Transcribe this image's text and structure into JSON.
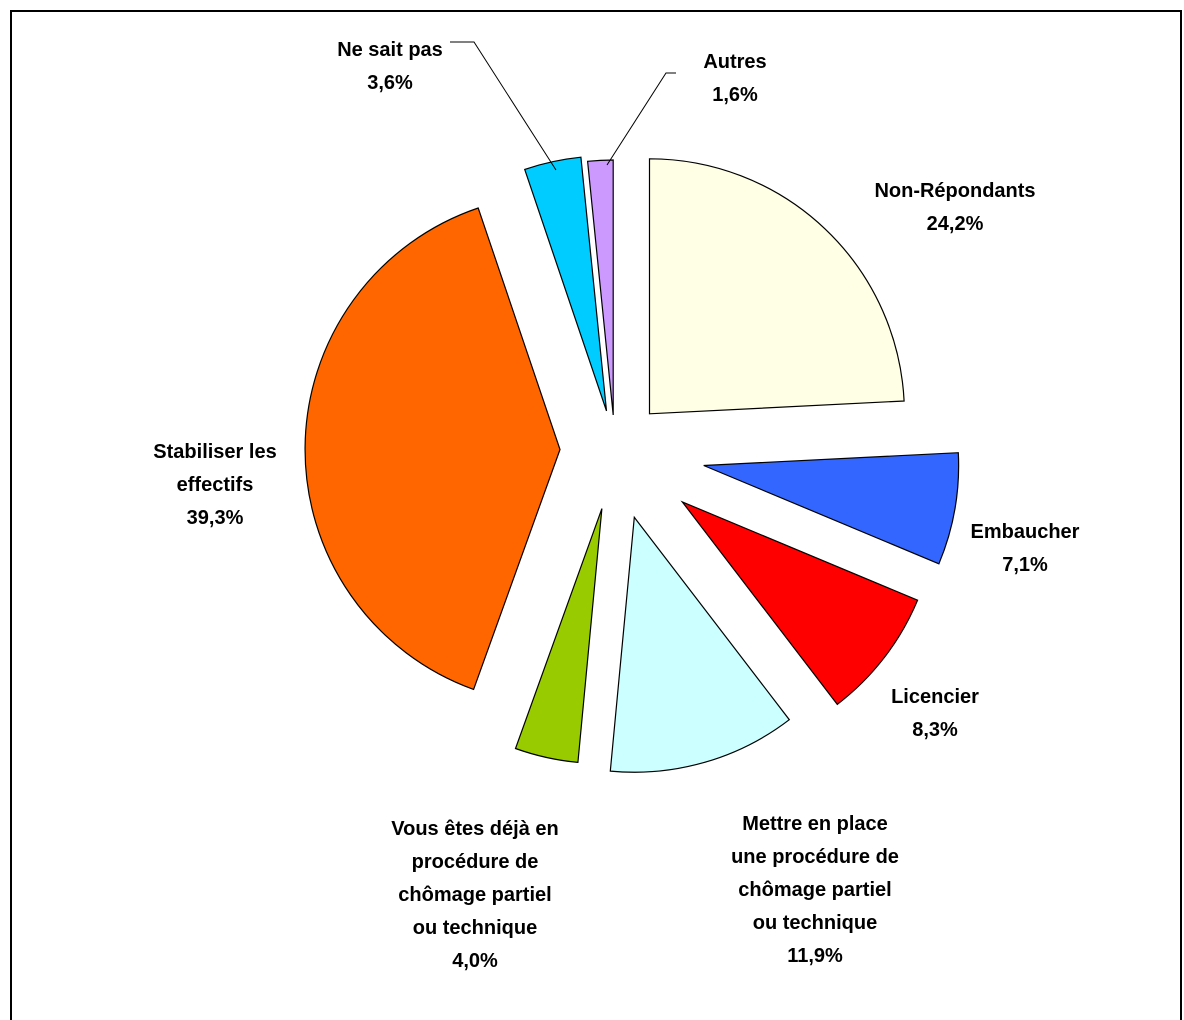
{
  "chart_data": {
    "type": "pie",
    "title": "",
    "exploded": true,
    "slices": [
      {
        "label_lines": [
          "Non-Répondants"
        ],
        "value_label": "24,2%",
        "value": 24.2,
        "color": "#FFFFE6"
      },
      {
        "label_lines": [
          "Embaucher"
        ],
        "value_label": "7,1%",
        "value": 7.1,
        "color": "#3366FF"
      },
      {
        "label_lines": [
          "Licencier"
        ],
        "value_label": "8,3%",
        "value": 8.3,
        "color": "#FF0000"
      },
      {
        "label_lines": [
          "Mettre en place",
          "une procédure de",
          "chômage partiel",
          "ou technique"
        ],
        "value_label": "11,9%",
        "value": 11.9,
        "color": "#CCFFFF"
      },
      {
        "label_lines": [
          "Vous êtes déjà en",
          "procédure de",
          "chômage partiel",
          "ou technique"
        ],
        "value_label": "4,0%",
        "value": 4.0,
        "color": "#99CC00"
      },
      {
        "label_lines": [
          "Stabiliser les",
          "effectifs"
        ],
        "value_label": "39,3%",
        "value": 39.3,
        "color": "#FF6600"
      },
      {
        "label_lines": [
          "Ne sait pas"
        ],
        "value_label": "3,6%",
        "value": 3.6,
        "color": "#00CCFF"
      },
      {
        "label_lines": [
          "Autres"
        ],
        "value_label": "1,6%",
        "value": 1.6,
        "color": "#CC99FF"
      }
    ]
  }
}
